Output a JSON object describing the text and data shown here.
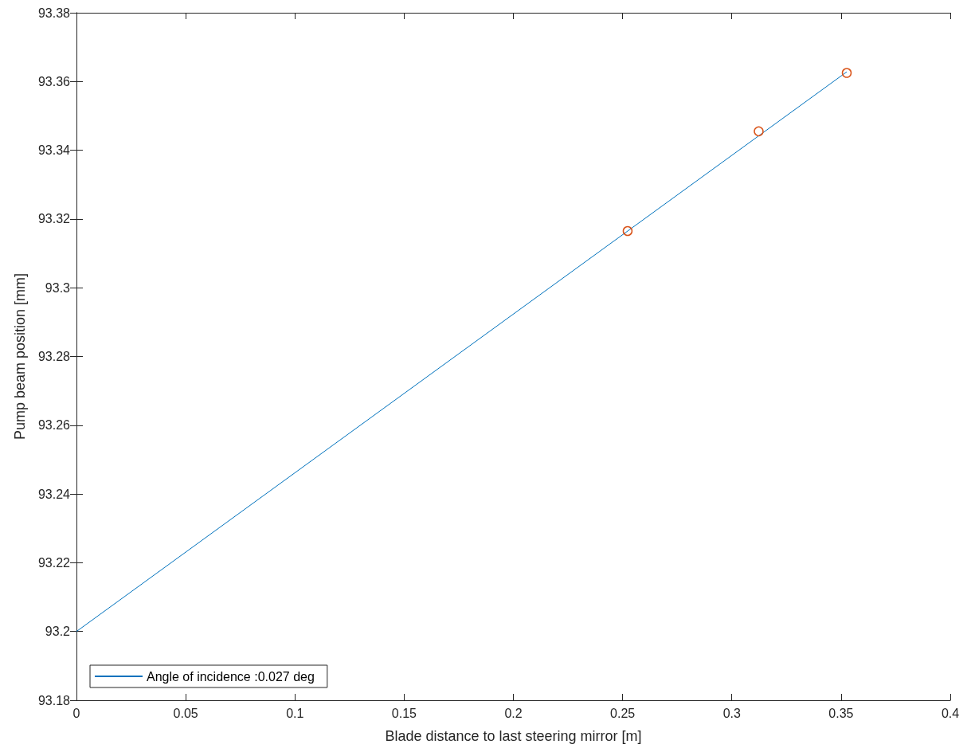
{
  "chart_data": {
    "type": "line",
    "xlabel": "Blade distance to last steering mirror [m]",
    "ylabel": "Pump beam position [mm]",
    "series": [
      {
        "name": "Angle of incidence :0.027 deg",
        "color": "#0072bd",
        "marker": "none",
        "x": [
          0,
          0.3526
        ],
        "values": [
          93.2,
          93.3628
        ]
      },
      {
        "type": "scatter",
        "color": "#d95319",
        "marker": "circle",
        "x": [
          0.2523,
          0.3123,
          0.3526
        ],
        "values": [
          93.3165,
          93.3455,
          93.3625
        ]
      }
    ],
    "xlim": [
      0,
      0.4
    ],
    "xticks": [
      0,
      0.05,
      0.1,
      0.15,
      0.2,
      0.25,
      0.3,
      0.35,
      0.4
    ],
    "ylim": [
      93.18,
      93.38
    ],
    "yticks": [
      93.18,
      93.2,
      93.22,
      93.24,
      93.26,
      93.28,
      93.3,
      93.32,
      93.34,
      93.36,
      93.38
    ],
    "grid": false,
    "legend": "bottom left"
  }
}
